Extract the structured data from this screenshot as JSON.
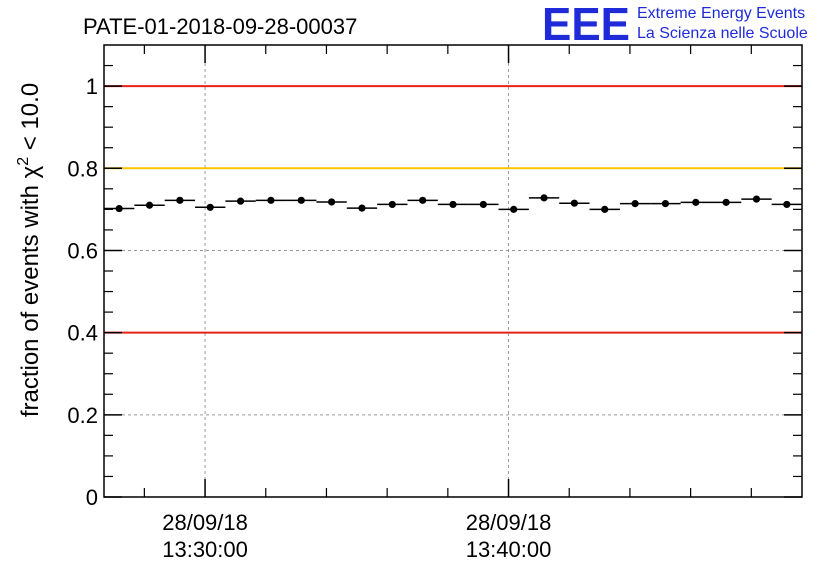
{
  "chart_data": {
    "type": "scatter",
    "title": "PATE-01-2018-09-28-00037",
    "ylabel_prefix": "fraction of events with χ",
    "ylabel_sup": "2",
    "ylabel_suffix": " < 10.0",
    "ylim": [
      0,
      1.1
    ],
    "y_ticks": [
      {
        "value": 0,
        "label": "0"
      },
      {
        "value": 0.2,
        "label": "0.2"
      },
      {
        "value": 0.4,
        "label": "0.4"
      },
      {
        "value": 0.6,
        "label": "0.6"
      },
      {
        "value": 0.8,
        "label": "0.8"
      },
      {
        "value": 1.0,
        "label": "1"
      }
    ],
    "xlim_minutes": [
      -3.33,
      19.67
    ],
    "x_ticks": [
      {
        "value": 0,
        "date": "28/09/18",
        "time": "13:30:00"
      },
      {
        "value": 10,
        "date": "28/09/18",
        "time": "13:40:00"
      }
    ],
    "x_minor_ticks": [
      -2,
      2,
      4,
      6,
      8,
      12,
      14,
      16,
      18
    ],
    "grid": true,
    "bin_width_minutes": 1,
    "x": [
      -2.83,
      -1.83,
      -0.83,
      0.17,
      1.17,
      2.17,
      3.17,
      4.17,
      5.17,
      6.17,
      7.17,
      8.17,
      9.17,
      10.17,
      11.17,
      12.17,
      13.17,
      14.17,
      15.17,
      16.17,
      17.17,
      18.17,
      19.17
    ],
    "values": [
      0.702,
      0.71,
      0.722,
      0.705,
      0.72,
      0.722,
      0.722,
      0.718,
      0.703,
      0.712,
      0.722,
      0.712,
      0.712,
      0.7,
      0.728,
      0.715,
      0.7,
      0.714,
      0.714,
      0.717,
      0.717,
      0.725,
      0.712
    ],
    "reference_lines": [
      {
        "name": "upper-red",
        "value": 1.0,
        "color": "#e8201a"
      },
      {
        "name": "yellow",
        "value": 0.8,
        "color": "#ffc400"
      },
      {
        "name": "lower-red",
        "value": 0.4,
        "color": "#e8201a"
      }
    ]
  },
  "logo": {
    "letters": "EEE",
    "line1": "Extreme Energy Events",
    "line2": "La Scienza nelle Scuole"
  }
}
